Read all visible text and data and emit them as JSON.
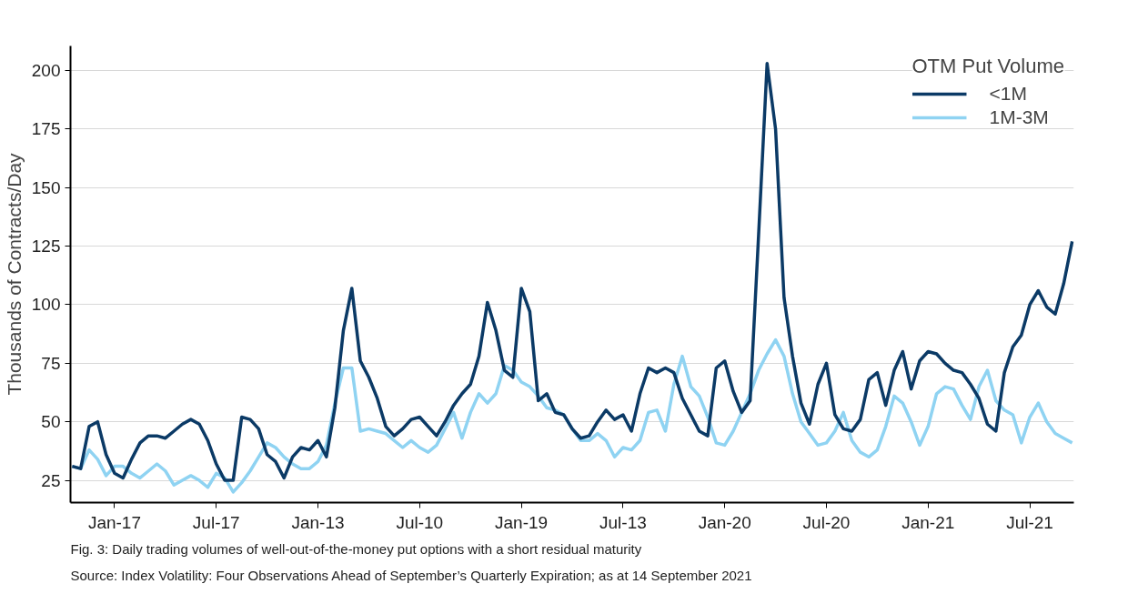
{
  "chart_data": {
    "type": "line",
    "ylabel": "Thousands of Contracts/Day",
    "legend_title": "OTM Put Volume",
    "legend": "top right",
    "grid": "y",
    "ylim": [
      15.5,
      210.5
    ],
    "categories": [
      null,
      null,
      null,
      null,
      null,
      "Jan-17",
      null,
      null,
      null,
      null,
      null,
      null,
      null,
      null,
      null,
      null,
      null,
      "Jul-17",
      null,
      null,
      null,
      null,
      null,
      null,
      null,
      null,
      null,
      null,
      null,
      "Jan-13",
      null,
      null,
      null,
      null,
      null,
      null,
      null,
      null,
      null,
      null,
      null,
      "Jul-10",
      null,
      null,
      null,
      null,
      null,
      null,
      null,
      null,
      null,
      null,
      null,
      "Jan-19",
      null,
      null,
      null,
      null,
      null,
      null,
      null,
      null,
      null,
      null,
      null,
      "Jul-13",
      null,
      null,
      null,
      null,
      null,
      null,
      null,
      null,
      null,
      null,
      null,
      "Jan-20",
      null,
      null,
      null,
      null,
      null,
      null,
      null,
      null,
      null,
      null,
      null,
      "Jul-20",
      null,
      null,
      null,
      null,
      null,
      null,
      null,
      null,
      null,
      null,
      null,
      "Jan-21",
      null,
      null,
      null,
      null,
      null,
      null,
      null,
      null,
      null,
      null,
      null,
      "Jul-21",
      null,
      null,
      null,
      null,
      null
    ],
    "yticks": [
      25,
      50,
      75,
      100,
      125,
      150,
      175,
      200
    ],
    "annotations": [
      "Fig. 3: Daily trading volumes of well-out-of-the-money put options with a short residual maturity",
      "Source: Index Volatility: Four Observations Ahead of September’s Quarterly Expiration; as at 14 September 2021"
    ],
    "series": [
      {
        "name": "1M-3M",
        "color": "#8fd3f2",
        "values": [
          31,
          30,
          38,
          34,
          27,
          31,
          31,
          28,
          26,
          29,
          32,
          29,
          23,
          25,
          27,
          25,
          22,
          28,
          26,
          20,
          24,
          29,
          35,
          41,
          39,
          35,
          32,
          30,
          30,
          33,
          40,
          58,
          73,
          73,
          46,
          47,
          46,
          45,
          42,
          39,
          42,
          39,
          37,
          40,
          47,
          54,
          43,
          54,
          62,
          58,
          62,
          74,
          72,
          67,
          65,
          61,
          56,
          55,
          53,
          47,
          42,
          42,
          45,
          42,
          35,
          39,
          38,
          42,
          54,
          55,
          46,
          66,
          78,
          65,
          61,
          52,
          41,
          40,
          46,
          54,
          62,
          72,
          79,
          85,
          78,
          62,
          50,
          45,
          40,
          41,
          46,
          54,
          42,
          37,
          35,
          38,
          48,
          61,
          58,
          50,
          40,
          48,
          62,
          65,
          64,
          57,
          51,
          65,
          72,
          59,
          55,
          53,
          41,
          52,
          58,
          50,
          45,
          43,
          41
        ]
      },
      {
        "name": "<1M",
        "color": "#0b3a66",
        "values": [
          31,
          30,
          48,
          50,
          36,
          28,
          26,
          34,
          41,
          44,
          44,
          43,
          46,
          49,
          51,
          49,
          42,
          32,
          25,
          25,
          52,
          51,
          47,
          36,
          33,
          26,
          35,
          39,
          38,
          42,
          35,
          56,
          89,
          107,
          76,
          69,
          60,
          48,
          44,
          47,
          51,
          52,
          48,
          44,
          50,
          57,
          62,
          66,
          78,
          101,
          89,
          72,
          69,
          107,
          97,
          59,
          62,
          54,
          53,
          47,
          43,
          44,
          50,
          55,
          51,
          53,
          46,
          62,
          73,
          71,
          73,
          71,
          60,
          53,
          46,
          44,
          73,
          76,
          63,
          54,
          59,
          130,
          203,
          175,
          103,
          78,
          58,
          49,
          66,
          75,
          53,
          47,
          46,
          51,
          68,
          71,
          57,
          72,
          80,
          64,
          76,
          80,
          79,
          75,
          72,
          71,
          66,
          60,
          49,
          46,
          71,
          82,
          87,
          100,
          106,
          99,
          96,
          109,
          127
        ]
      }
    ]
  }
}
